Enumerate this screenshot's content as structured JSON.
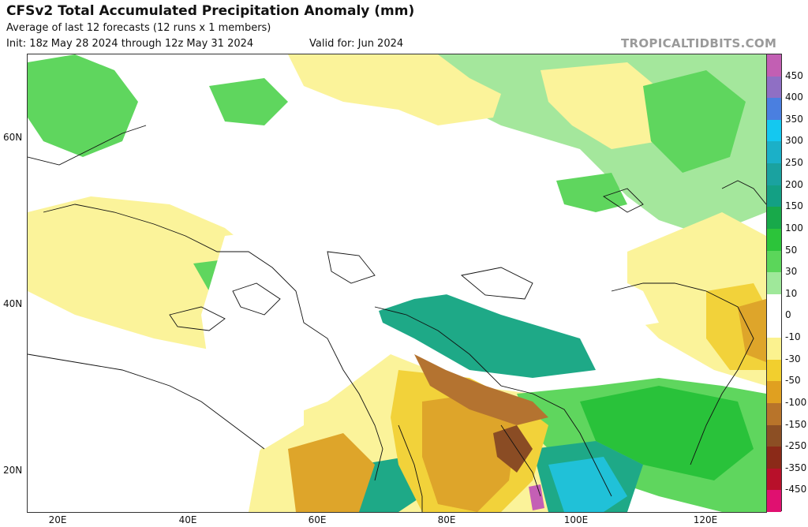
{
  "header": {
    "title": "CFSv2 Total Accumulated Precipitation Anomaly (mm)",
    "subtitle": "Average of last 12 forecasts (12 runs x 1 members)",
    "init": "Init: 18z May 28 2024 through 12z May 31 2024",
    "valid": "Valid for: Jun 2024"
  },
  "brand": "TROPICALTIDBITS.COM",
  "axes": {
    "lat_labels": [
      "60N",
      "40N",
      "20N"
    ],
    "lon_labels": [
      "20E",
      "40E",
      "60E",
      "80E",
      "100E",
      "120E"
    ]
  },
  "colorbar": {
    "labels": [
      "450",
      "400",
      "350",
      "300",
      "250",
      "200",
      "150",
      "100",
      "50",
      "30",
      "10",
      "0",
      "-10",
      "-30",
      "-50",
      "-100",
      "-150",
      "-250",
      "-350",
      "-450"
    ],
    "colors": [
      "#c25fb3",
      "#8f6fc4",
      "#4a7fe0",
      "#14c8f0",
      "#1bb0c8",
      "#1aa2a0",
      "#13a084",
      "#18a94a",
      "#2cc43a",
      "#5bd65a",
      "#9fe89a",
      "#ffffff",
      "#ffffff",
      "#fbf28f",
      "#f2cf2e",
      "#e0a020",
      "#b8742a",
      "#8c4f24",
      "#8b2a18",
      "#b8102a",
      "#e01070"
    ]
  },
  "map": {
    "colors": {
      "lightgreen": "#a4e79c",
      "green": "#5fd65e",
      "darkgreen": "#29c23a",
      "teal": "#1ea987",
      "cyan": "#20c1d8",
      "lightyellow": "#fbf39a",
      "yellow": "#f2d23a",
      "orange": "#dea52a",
      "brown": "#b47330",
      "darkbrown": "#8a4c24",
      "magenta": "#c45fb5"
    }
  }
}
